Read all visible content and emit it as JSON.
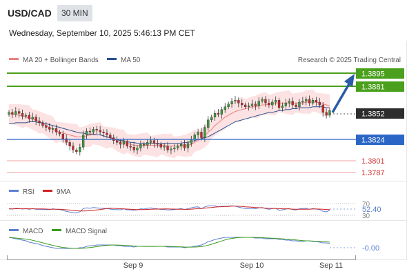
{
  "header": {
    "symbol": "USD/CAD",
    "timeframe": "30 MIN"
  },
  "date_line": "Wednesday, September 10, 2025 5:46:13 PM CET",
  "legend": {
    "ma20": "MA 20 + Bollinger Bands",
    "ma50": "MA 50",
    "copyright": "Research © 2025 Trading Central"
  },
  "colors": {
    "resistance": "#4aa01c",
    "support": "#2b66c7",
    "support_minor": "#e06060",
    "current": "#2d2d2d",
    "bull": "#3a9a3a",
    "bear": "#c42b2b",
    "ma20": "#e88080",
    "ma50": "#2b4f8f",
    "band": "#fbd8d8",
    "rsi": "#5b7fd1",
    "rsi_ma": "#d02020",
    "macd": "#5b7fd1",
    "macd_signal": "#3a9a1a",
    "arrow": "#2a5aa8"
  },
  "levels": [
    {
      "label": "1.3895",
      "type": "resistance"
    },
    {
      "label": "1.3881",
      "type": "resistance"
    },
    {
      "label": "1.3852",
      "type": "current"
    },
    {
      "label": "1.3824",
      "type": "support"
    },
    {
      "label": "1.3801",
      "type": "support_minor"
    },
    {
      "label": "1.3787",
      "type": "support_minor"
    }
  ],
  "rsi_panel": {
    "title": "RSI",
    "ma_label": "9MA",
    "upper": "70",
    "value": "52.40",
    "lower": "30"
  },
  "macd_panel": {
    "title": "MACD",
    "signal_label": "MACD Signal",
    "value": "-0.00"
  },
  "x_axis": [
    "Sep 9",
    "Sep 10",
    "Sep 11"
  ],
  "chart_data": {
    "type": "candlestick",
    "y_axis": {
      "min": 1.378,
      "max": 1.39
    },
    "close": [
      1.385,
      1.3848,
      1.3851,
      1.3849,
      1.3846,
      1.3847,
      1.3843,
      1.3845,
      1.3841,
      1.3839,
      1.3836,
      1.3834,
      1.3832,
      1.3833,
      1.3829,
      1.3827,
      1.3822,
      1.3818,
      1.3814,
      1.381,
      1.3808,
      1.3813,
      1.3826,
      1.383,
      1.3829,
      1.3832,
      1.3831,
      1.3829,
      1.3828,
      1.3826,
      1.3823,
      1.382,
      1.3818,
      1.3816,
      1.3819,
      1.3814,
      1.3813,
      1.381,
      1.3812,
      1.3816,
      1.3815,
      1.3818,
      1.382,
      1.3817,
      1.3816,
      1.3813,
      1.3814,
      1.381,
      1.3811,
      1.3812,
      1.3814,
      1.3816,
      1.3812,
      1.3817,
      1.3821,
      1.3826,
      1.3829,
      1.3823,
      1.3834,
      1.3842,
      1.3845,
      1.3849,
      1.3848,
      1.3853,
      1.3856,
      1.3859,
      1.3862,
      1.3863,
      1.386,
      1.3858,
      1.3856,
      1.3857,
      1.3859,
      1.3857,
      1.3862,
      1.3864,
      1.386,
      1.3858,
      1.3861,
      1.3863,
      1.3855,
      1.3857,
      1.386,
      1.3862,
      1.3858,
      1.3856,
      1.3861,
      1.3862,
      1.3864,
      1.386,
      1.3863,
      1.3861,
      1.3858,
      1.385,
      1.3847,
      1.3852
    ],
    "ma20": [
      1.3849,
      1.3848,
      1.3848,
      1.3847,
      1.3846,
      1.3845,
      1.3844,
      1.3843,
      1.3842,
      1.384,
      1.3838,
      1.3836,
      1.3834,
      1.3832,
      1.383,
      1.3829,
      1.3828,
      1.3827,
      1.3826,
      1.3825,
      1.3824,
      1.3824,
      1.3824,
      1.3825,
      1.3826,
      1.3826,
      1.3826,
      1.3826,
      1.3825,
      1.3824,
      1.3823,
      1.3822,
      1.382,
      1.3819,
      1.3818,
      1.3817,
      1.3816,
      1.3815,
      1.3815,
      1.3815,
      1.3815,
      1.3815,
      1.3815,
      1.3815,
      1.3815,
      1.3815,
      1.3815,
      1.3814,
      1.3814,
      1.3814,
      1.3814,
      1.3814,
      1.3814,
      1.3815,
      1.3816,
      1.3818,
      1.382,
      1.3822,
      1.3825,
      1.3829,
      1.3832,
      1.3836,
      1.3839,
      1.3842,
      1.3845,
      1.3847,
      1.3849,
      1.3851,
      1.3852,
      1.3853,
      1.3854,
      1.3855,
      1.3856,
      1.3856,
      1.3857,
      1.3858,
      1.3858,
      1.3859,
      1.3859,
      1.386,
      1.386,
      1.386,
      1.386,
      1.386,
      1.386,
      1.386,
      1.386,
      1.386,
      1.3861,
      1.3861,
      1.3861,
      1.3861,
      1.386,
      1.3859,
      1.3858,
      1.3857
    ],
    "ma50": [
      1.3838,
      1.3838,
      1.3839,
      1.3839,
      1.3839,
      1.3839,
      1.384,
      1.384,
      1.384,
      1.3839,
      1.3839,
      1.3838,
      1.3837,
      1.3836,
      1.3835,
      1.3834,
      1.3833,
      1.3832,
      1.3831,
      1.383,
      1.3829,
      1.3828,
      1.3828,
      1.3827,
      1.3827,
      1.3827,
      1.3826,
      1.3826,
      1.3825,
      1.3824,
      1.3823,
      1.3822,
      1.3821,
      1.382,
      1.382,
      1.3819,
      1.3818,
      1.3818,
      1.3817,
      1.3817,
      1.3817,
      1.3817,
      1.3817,
      1.3817,
      1.3817,
      1.3817,
      1.3817,
      1.3817,
      1.3817,
      1.3817,
      1.3817,
      1.3817,
      1.3818,
      1.3818,
      1.3819,
      1.382,
      1.3821,
      1.3822,
      1.3823,
      1.3824,
      1.3826,
      1.3828,
      1.383,
      1.3832,
      1.3834,
      1.3836,
      1.3838,
      1.384,
      1.3841,
      1.3842,
      1.3843,
      1.3844,
      1.3845,
      1.3846,
      1.3847,
      1.3848,
      1.3849,
      1.385,
      1.385,
      1.3851,
      1.3852,
      1.3852,
      1.3853,
      1.3853,
      1.3854,
      1.3854,
      1.3855,
      1.3855,
      1.3855,
      1.3855,
      1.3856,
      1.3856,
      1.3856,
      1.3856,
      1.3855,
      1.3855
    ],
    "bb_width": 0.001
  }
}
